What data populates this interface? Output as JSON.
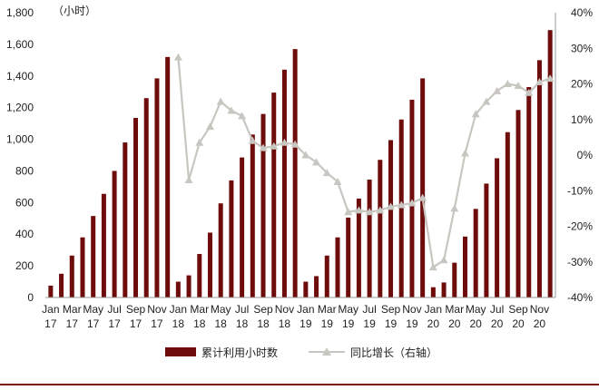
{
  "chart_data": {
    "type": "bar+line",
    "unit_left": "（小时）",
    "categories": [
      "Jan 17",
      "Feb 17",
      "Mar 17",
      "Apr 17",
      "May 17",
      "Jun 17",
      "Jul 17",
      "Aug 17",
      "Sep 17",
      "Oct 17",
      "Nov 17",
      "Dec 17",
      "Jan 18",
      "Feb 18",
      "Mar 18",
      "Apr 18",
      "May 18",
      "Jun 18",
      "Jul 18",
      "Aug 18",
      "Sep 18",
      "Oct 18",
      "Nov 18",
      "Dec 18",
      "Jan 19",
      "Feb 19",
      "Mar 19",
      "Apr 19",
      "May 19",
      "Jun 19",
      "Jul 19",
      "Aug 19",
      "Sep 19",
      "Oct 19",
      "Nov 19",
      "Dec 19",
      "Jan 20",
      "Feb 20",
      "Mar 20",
      "Apr 20",
      "May 20",
      "Jun 20",
      "Jul 20",
      "Aug 20",
      "Sep 20",
      "Oct 20",
      "Nov 20",
      "Dec 20"
    ],
    "x_tick_labels": [
      {
        "month": "Jan",
        "year": "17"
      },
      {
        "month": "Mar",
        "year": "17"
      },
      {
        "month": "May",
        "year": "17"
      },
      {
        "month": "Jul",
        "year": "17"
      },
      {
        "month": "Sep",
        "year": "17"
      },
      {
        "month": "Nov",
        "year": "17"
      },
      {
        "month": "Jan",
        "year": "18"
      },
      {
        "month": "Mar",
        "year": "18"
      },
      {
        "month": "May",
        "year": "18"
      },
      {
        "month": "Jul",
        "year": "18"
      },
      {
        "month": "Sep",
        "year": "18"
      },
      {
        "month": "Nov",
        "year": "18"
      },
      {
        "month": "Jan",
        "year": "19"
      },
      {
        "month": "Mar",
        "year": "19"
      },
      {
        "month": "May",
        "year": "19"
      },
      {
        "month": "Jul",
        "year": "19"
      },
      {
        "month": "Sep",
        "year": "19"
      },
      {
        "month": "Nov",
        "year": "19"
      },
      {
        "month": "Jan",
        "year": "20"
      },
      {
        "month": "Mar",
        "year": "20"
      },
      {
        "month": "May",
        "year": "20"
      },
      {
        "month": "Jul",
        "year": "20"
      },
      {
        "month": "Sep",
        "year": "20"
      },
      {
        "month": "Nov",
        "year": "20"
      }
    ],
    "series": [
      {
        "name": "累计利用小时数",
        "type": "bar",
        "axis": "left",
        "color": "#6e0c0c",
        "values": [
          75,
          150,
          265,
          380,
          515,
          655,
          800,
          980,
          1135,
          1260,
          1385,
          1520,
          100,
          140,
          275,
          410,
          595,
          740,
          885,
          1030,
          1160,
          1295,
          1440,
          1570,
          100,
          135,
          265,
          380,
          505,
          625,
          745,
          870,
          995,
          1125,
          1250,
          1385,
          65,
          95,
          220,
          385,
          560,
          720,
          880,
          1045,
          1185,
          1330,
          1500,
          1690
        ]
      },
      {
        "name": "同比增长（右轴）",
        "type": "line",
        "axis": "right",
        "color": "#c8c6c0",
        "values": [
          null,
          null,
          null,
          null,
          null,
          null,
          null,
          null,
          null,
          null,
          null,
          null,
          27.5,
          -7,
          3.5,
          8,
          15,
          12.5,
          11,
          4,
          2,
          2.5,
          3.5,
          3,
          0,
          -2,
          -5,
          -7.5,
          -16,
          -15.5,
          -16,
          -15.5,
          -14.5,
          -14,
          -13.5,
          -12,
          -31.5,
          -29.5,
          -15,
          0.5,
          11.5,
          15,
          18,
          20,
          19.5,
          17.5,
          20.5,
          21.5
        ]
      }
    ],
    "ylim_left": [
      0,
      1800
    ],
    "yticks_left": [
      "0",
      "200",
      "400",
      "600",
      "800",
      "1,000",
      "1,200",
      "1,400",
      "1,600",
      "1,800"
    ],
    "ylim_right": [
      -40,
      40
    ],
    "yticks_right": [
      "-40%",
      "-30%",
      "-20%",
      "-10%",
      "0%",
      "10%",
      "20%",
      "30%",
      "40%"
    ],
    "legend_position": "bottom",
    "grid": false
  }
}
